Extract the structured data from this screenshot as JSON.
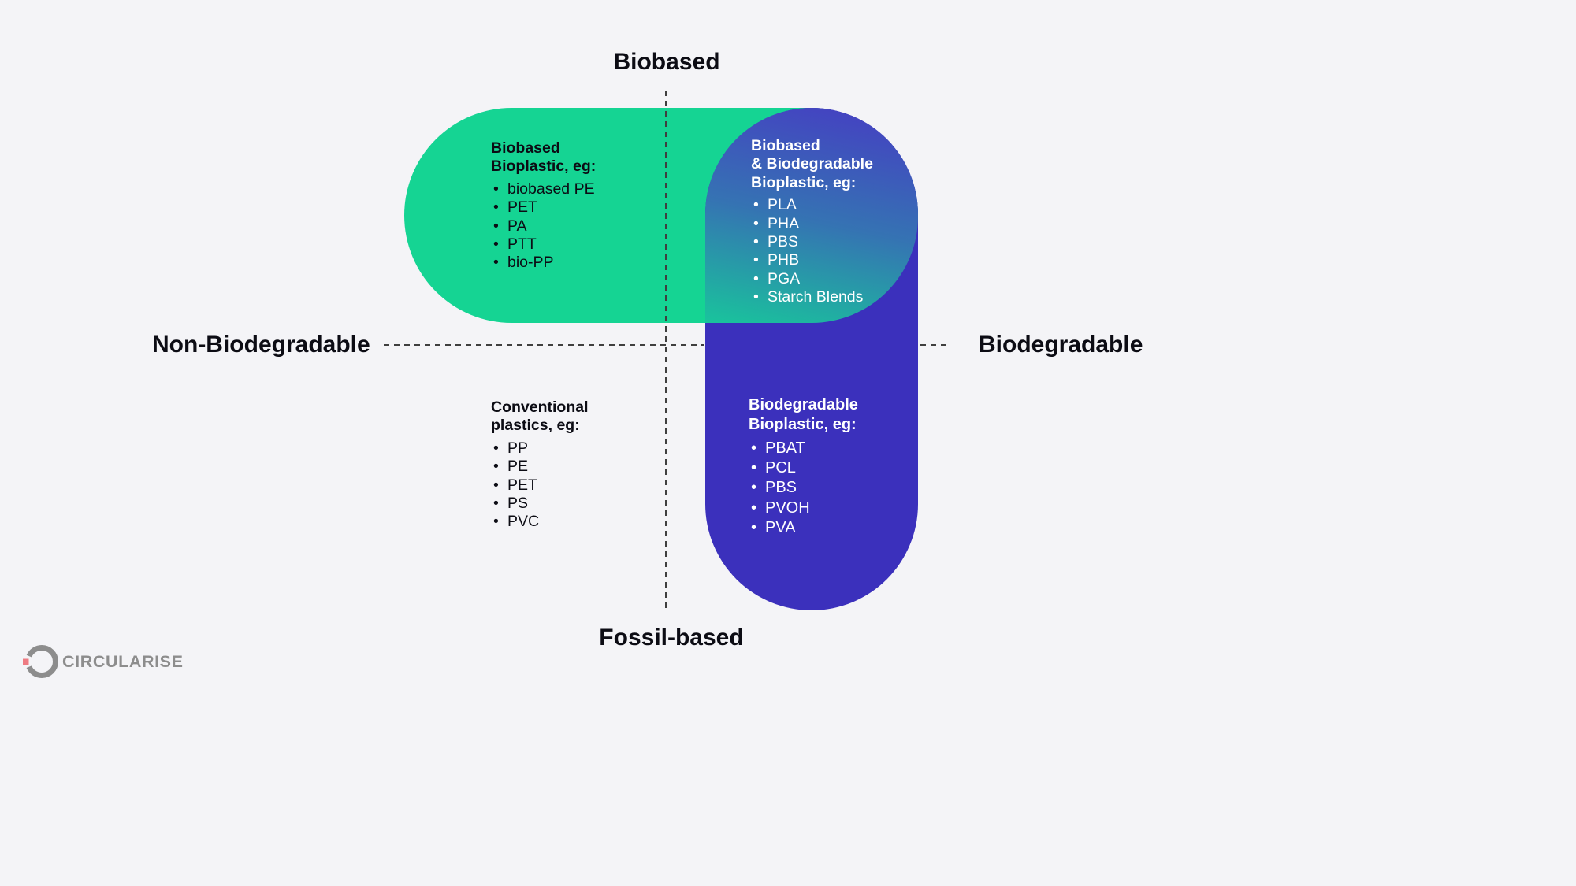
{
  "colors": {
    "background": "#f4f4f7",
    "green": "#15d493",
    "blue": "#3b30bc",
    "overlap_top": "#463cc3",
    "overlap_mid": "#3573b3",
    "overlap_bottom": "#19c49c",
    "dash": "#3f3f3f",
    "text_dark": "#0c0c14",
    "text_light": "#ffffff",
    "logo_gray": "#8d8d8d",
    "logo_pink": "#ee7b83"
  },
  "axis_labels": {
    "top": "Biobased",
    "bottom": "Fossil-based",
    "left": "Non-Biodegradable",
    "right": "Biodegradable"
  },
  "quadrants": {
    "biobased_nonbiodegradable": {
      "title": "Biobased\nBioplastic, eg:",
      "items": [
        "biobased PE",
        "PET",
        "PA",
        "PTT",
        "bio-PP"
      ]
    },
    "biobased_biodegradable": {
      "title": "Biobased\n& Biodegradable\nBioplastic, eg:",
      "items": [
        "PLA",
        "PHA",
        "PBS",
        "PHB",
        "PGA",
        "Starch Blends"
      ]
    },
    "fossil_nonbiodegradable": {
      "title": "Conventional\nplastics, eg:",
      "items": [
        "PP",
        "PE",
        "PET",
        "PS",
        "PVC"
      ]
    },
    "fossil_biodegradable": {
      "title": "Biodegradable\nBioplastic, eg:",
      "items": [
        "PBAT",
        "PCL",
        "PBS",
        "PVOH",
        "PVA"
      ]
    }
  },
  "logo": {
    "text": "CIRCULARISE"
  }
}
